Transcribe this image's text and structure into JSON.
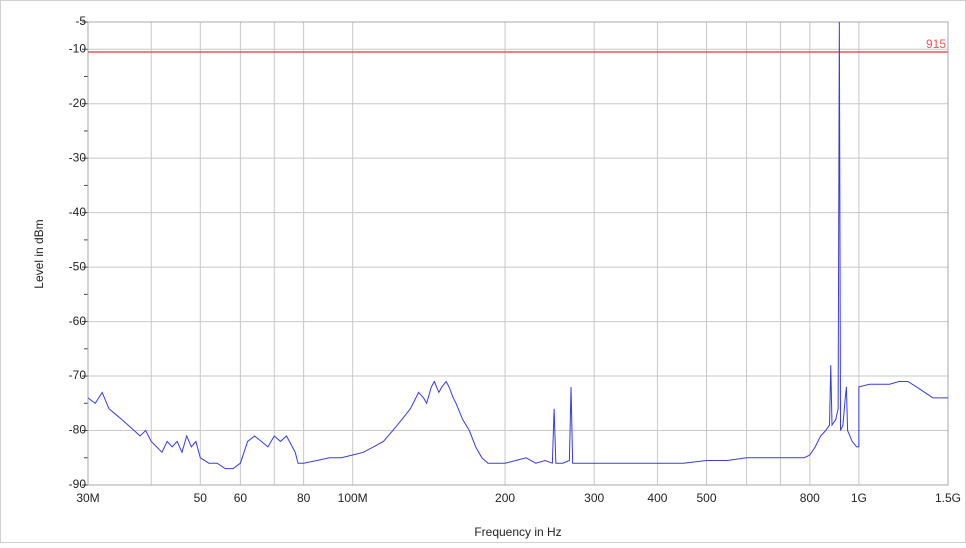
{
  "chart_data": {
    "type": "line",
    "xlabel": "Frequency in Hz",
    "ylabel": "Level in dBm",
    "xscale": "log",
    "grid": true,
    "xlim": [
      30000000,
      1500000000
    ],
    "ylim": [
      -90,
      -5
    ],
    "xticks": [
      {
        "value": 30000000,
        "label": "30M"
      },
      {
        "value": 50000000,
        "label": "50"
      },
      {
        "value": 60000000,
        "label": "60"
      },
      {
        "value": 80000000,
        "label": "80"
      },
      {
        "value": 100000000,
        "label": "100M"
      },
      {
        "value": 200000000,
        "label": "200"
      },
      {
        "value": 300000000,
        "label": "300"
      },
      {
        "value": 400000000,
        "label": "400"
      },
      {
        "value": 500000000,
        "label": "500"
      },
      {
        "value": 800000000,
        "label": "800"
      },
      {
        "value": 1000000000,
        "label": "1G"
      },
      {
        "value": 1500000000,
        "label": "1.5G"
      }
    ],
    "xminor": [
      40000000,
      70000000,
      600000000,
      700000000
    ],
    "yticks": [
      -5,
      -10,
      -20,
      -30,
      -40,
      -50,
      -60,
      -70,
      -80,
      -90
    ],
    "yminor": [
      -15,
      -25,
      -35,
      -45,
      -55,
      -65,
      -75,
      -85
    ],
    "limit_line": {
      "value": -10.5,
      "label": "915",
      "color": "#e8575a"
    },
    "series": [
      {
        "name": "Level",
        "color": "#3b3bdc",
        "x": [
          30000000,
          31000000,
          32000000,
          33000000,
          34000000,
          35000000,
          36000000,
          37000000,
          38000000,
          39000000,
          40000000,
          41000000,
          42000000,
          43000000,
          44000000,
          45000000,
          46000000,
          47000000,
          48000000,
          49000000,
          50000000,
          52000000,
          54000000,
          56000000,
          58000000,
          60000000,
          61000000,
          62000000,
          64000000,
          66000000,
          68000000,
          70000000,
          72000000,
          74000000,
          76000000,
          77000000,
          78000000,
          80000000,
          85000000,
          90000000,
          95000000,
          100000000,
          105000000,
          110000000,
          115000000,
          120000000,
          125000000,
          130000000,
          135000000,
          138000000,
          140000000,
          143000000,
          145000000,
          148000000,
          150000000,
          153000000,
          155000000,
          158000000,
          160000000,
          165000000,
          170000000,
          175000000,
          180000000,
          185000000,
          190000000,
          200000000,
          210000000,
          220000000,
          230000000,
          240000000,
          248000000,
          250000000,
          252000000,
          260000000,
          268000000,
          270000000,
          272000000,
          280000000,
          300000000,
          330000000,
          360000000,
          400000000,
          450000000,
          500000000,
          550000000,
          600000000,
          650000000,
          700000000,
          750000000,
          780000000,
          800000000,
          820000000,
          840000000,
          860000000,
          875000000,
          880000000,
          885000000,
          900000000,
          910000000,
          915000000,
          920000000,
          930000000,
          940000000,
          945000000,
          950000000,
          970000000,
          990000000,
          1000000000,
          1000000000,
          1050000000,
          1100000000,
          1150000000,
          1200000000,
          1250000000,
          1300000000,
          1350000000,
          1400000000,
          1450000000,
          1500000000
        ],
        "values": [
          -74,
          -75,
          -73,
          -76,
          -77,
          -78,
          -79,
          -80,
          -81,
          -80,
          -82,
          -83,
          -84,
          -82,
          -83,
          -82,
          -84,
          -81,
          -83,
          -82,
          -85,
          -86,
          -86,
          -87,
          -87,
          -86,
          -84,
          -82,
          -81,
          -82,
          -83,
          -81,
          -82,
          -81,
          -83,
          -84,
          -86,
          -86,
          -85.5,
          -85,
          -85,
          -84.5,
          -84,
          -83,
          -82,
          -80,
          -78,
          -76,
          -73,
          -74,
          -75,
          -72,
          -71,
          -73,
          -72,
          -71,
          -72,
          -74,
          -75,
          -78,
          -80,
          -83,
          -85,
          -86,
          -86,
          -86,
          -85.5,
          -85,
          -86,
          -85.5,
          -86,
          -76,
          -86,
          -86,
          -85.5,
          -72,
          -86,
          -86,
          -86,
          -86,
          -86,
          -86,
          -86,
          -85.5,
          -85.5,
          -85,
          -85,
          -85,
          -85,
          -85,
          -84.5,
          -83,
          -81,
          -80,
          -79,
          -68,
          -79,
          -78,
          -76,
          -5,
          -80,
          -79,
          -74,
          -72,
          -80,
          -82,
          -83,
          -83,
          -72,
          -71.5,
          -71.5,
          -71.5,
          -71,
          -71,
          -72,
          -73,
          -74,
          -74,
          -74
        ]
      }
    ]
  }
}
